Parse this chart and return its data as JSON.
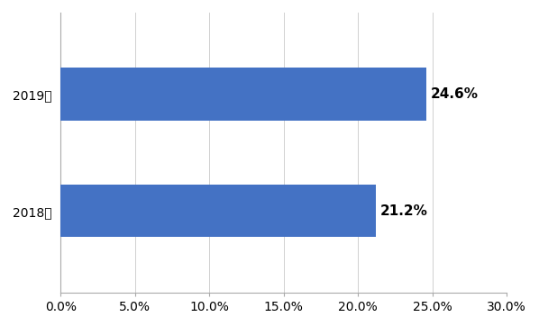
{
  "categories": [
    "2019年",
    "2018年"
  ],
  "values": [
    0.246,
    0.212
  ],
  "labels": [
    "24.6%",
    "21.2%"
  ],
  "bar_color": "#4472C4",
  "xlim": [
    0,
    0.3
  ],
  "xticks": [
    0.0,
    0.05,
    0.1,
    0.15,
    0.2,
    0.25,
    0.3
  ],
  "xtick_labels": [
    "0.0%",
    "5.0%",
    "10.0%",
    "15.0%",
    "20.0%",
    "25.0%",
    "30.0%"
  ],
  "bar_height": 0.45,
  "label_fontsize": 11,
  "tick_fontsize": 10,
  "ytick_fontsize": 11,
  "background_color": "#ffffff",
  "ylim": [
    -0.7,
    1.7
  ]
}
